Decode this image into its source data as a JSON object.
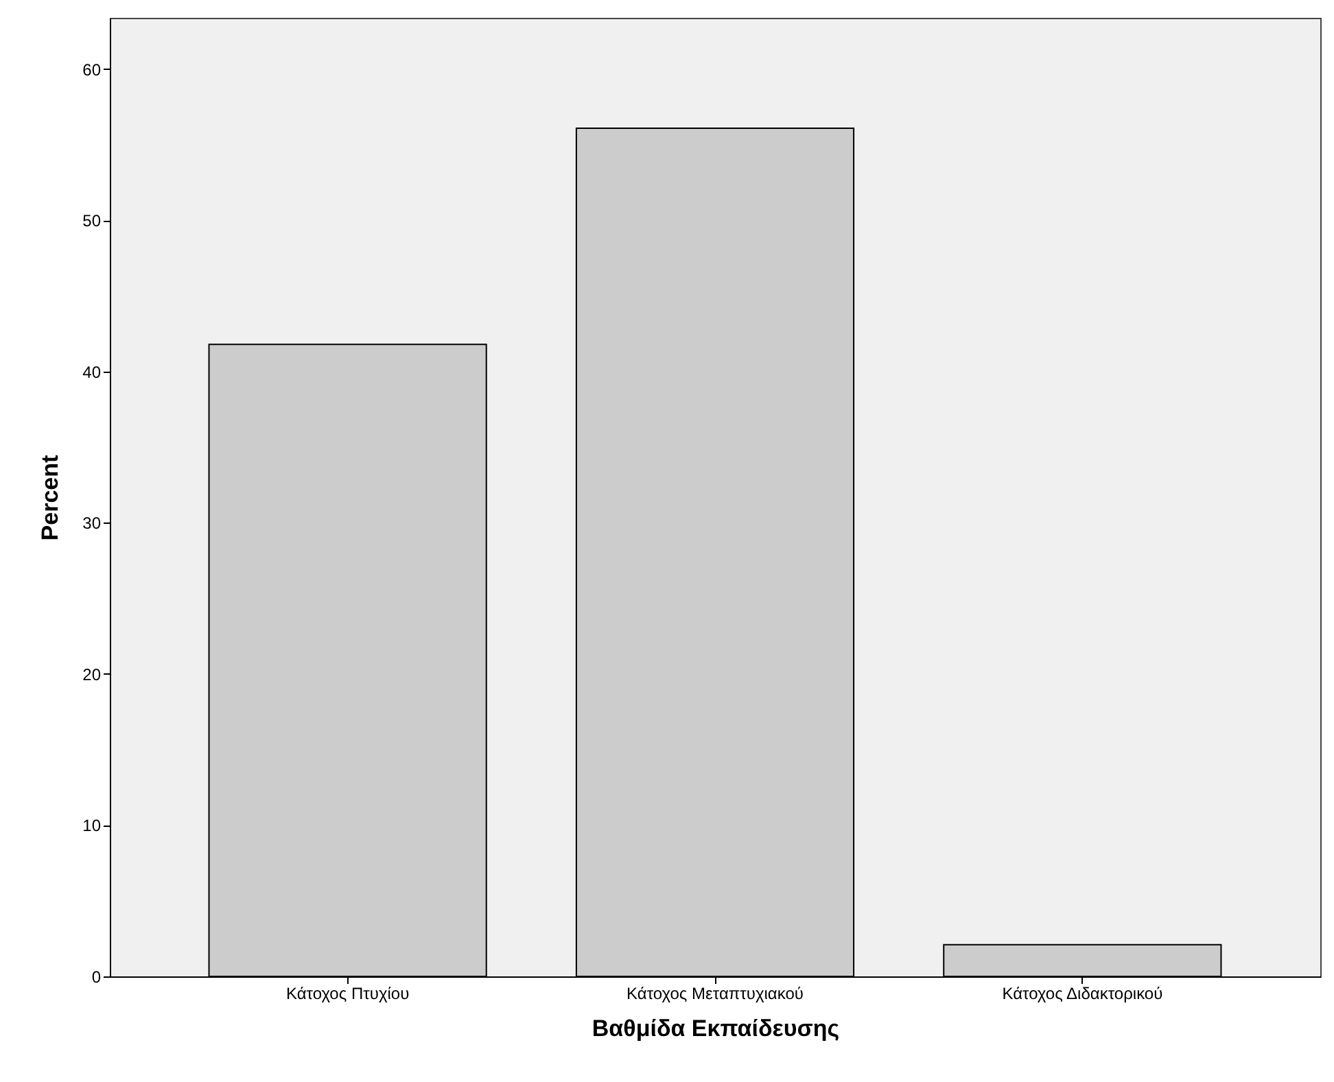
{
  "chart_data": {
    "type": "bar",
    "xlabel": "Βαθμίδα Εκπαίδευσης",
    "ylabel": "Percent",
    "categories": [
      "Κάτοχος Πτυχίου",
      "Κάτοχος Μεταπτυχιακού",
      "Κάτοχος Διδακτορικού"
    ],
    "values": [
      41.8,
      56.1,
      2.1
    ],
    "color": "#cccccc",
    "ylim": [
      0,
      63.4
    ],
    "yticks": [
      0,
      10,
      20,
      30,
      40,
      50,
      60
    ],
    "grid": false,
    "legend": false
  }
}
